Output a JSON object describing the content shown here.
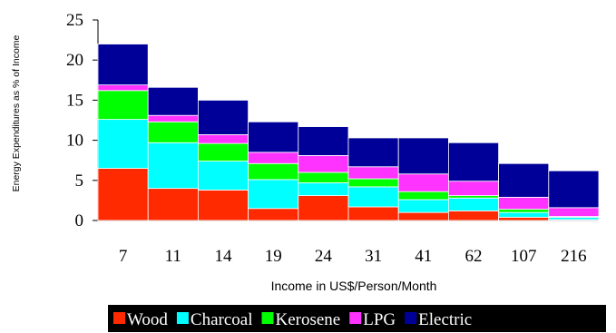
{
  "chart_data": {
    "type": "bar",
    "stacked": true,
    "xlabel": "Income in US$/Person/Month",
    "ylabel": "Energy Expenditures as % of Income",
    "ylim": [
      0,
      25
    ],
    "yticks": [
      0,
      5,
      10,
      15,
      20,
      25
    ],
    "categories": [
      "7",
      "11",
      "14",
      "19",
      "24",
      "31",
      "41",
      "62",
      "107",
      "216"
    ],
    "series": [
      {
        "name": "Wood",
        "color": "#ff2a00",
        "values": [
          6.5,
          4.0,
          3.8,
          1.5,
          3.1,
          1.7,
          1.0,
          1.2,
          0.4,
          0.1
        ]
      },
      {
        "name": "Charcoal",
        "color": "#00ffff",
        "values": [
          6.1,
          5.7,
          3.6,
          3.6,
          1.6,
          2.5,
          1.6,
          1.6,
          0.6,
          0.3
        ]
      },
      {
        "name": "Kerosene",
        "color": "#00ff00",
        "values": [
          3.6,
          2.6,
          2.2,
          2.0,
          1.3,
          1.0,
          1.0,
          0.3,
          0.4,
          0.1
        ]
      },
      {
        "name": "LPG",
        "color": "#ff33ff",
        "values": [
          0.7,
          0.8,
          1.1,
          1.4,
          2.1,
          1.5,
          2.2,
          1.8,
          1.5,
          1.1
        ]
      },
      {
        "name": "Electric",
        "color": "#000099",
        "values": [
          5.1,
          3.5,
          4.3,
          3.8,
          3.6,
          3.6,
          4.5,
          4.8,
          4.2,
          4.6
        ]
      }
    ],
    "legend_position": "bottom-right",
    "legend_background": "#000000",
    "grid": false
  }
}
